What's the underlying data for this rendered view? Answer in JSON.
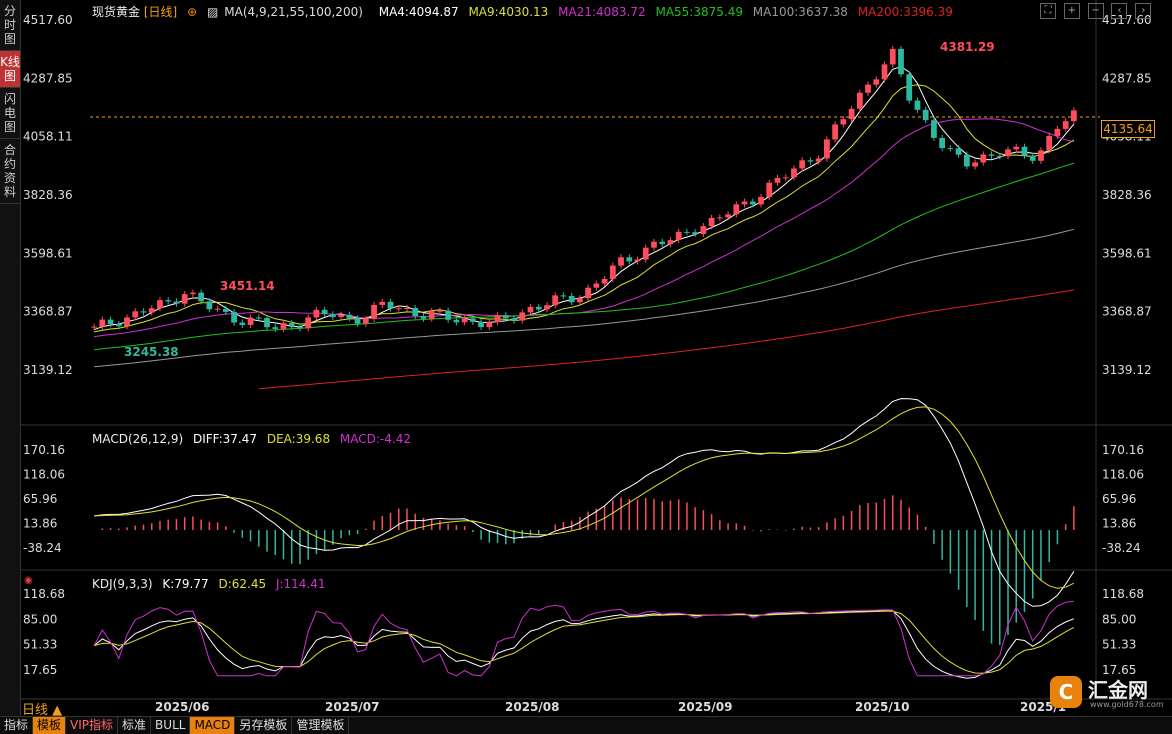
{
  "left_tabs": [
    "分时图",
    "K线图",
    "闪电图",
    "合约资料"
  ],
  "legend_main": {
    "symbol": "现货黄金",
    "period": "[日线]",
    "ma_def": "MA(4,9,21,55,100,200)",
    "ma4": "MA4:4094.87",
    "ma9": "MA9:4030.13",
    "ma21": "MA21:4083.72",
    "ma55": "MA55:3875.49",
    "ma100": "MA100:3637.38",
    "ma200": "MA200:3396.39"
  },
  "legend_macd": {
    "def": "MACD(26,12,9)",
    "diff": "DIFF:37.47",
    "dea": "DEA:39.68",
    "macd": "MACD:-4.42"
  },
  "legend_kdj": {
    "def": "KDJ(9,3,3)",
    "k": "K:79.77",
    "d": "D:62.45",
    "j": "J:114.41"
  },
  "price_axis": [
    "4517.60",
    "4287.85",
    "4058.11",
    "3828.36",
    "3598.61",
    "3368.87",
    "3139.12"
  ],
  "macd_axis": [
    "170.16",
    "118.06",
    "65.96",
    "13.86",
    "-38.24"
  ],
  "kdj_axis": [
    "118.68",
    "85.00",
    "51.33",
    "17.65"
  ],
  "x_axis": [
    "2025/06",
    "2025/07",
    "2025/08",
    "2025/09",
    "2025/10",
    "2025/1"
  ],
  "annotations": {
    "high": "4381.29",
    "mid": "3451.14",
    "low": "3245.38"
  },
  "current_price": "4135.64",
  "period_label": "日线 ▲",
  "bottom_buttons": [
    "指标",
    "模板",
    "VIP指标",
    "标准",
    "BULL",
    "MACD",
    "另存模板",
    "管理模板"
  ],
  "brand": {
    "logo": "C",
    "name": "汇金网",
    "url": "www.gold678.com"
  },
  "colors": {
    "up": "#ff4d5b",
    "down": "#2fb8a0",
    "ma4": "#ffffff",
    "ma9": "#e0e030",
    "ma21": "#d030d0",
    "ma55": "#20c020",
    "ma100": "#999999",
    "ma200": "#e02020",
    "accent": "#e8820c"
  },
  "chart_data": {
    "type": "candlestick",
    "title": "现货黄金 [日线]",
    "ylim": [
      3139.12,
      4517.6
    ],
    "x_ticks": [
      "2025/06",
      "2025/07",
      "2025/08",
      "2025/09",
      "2025/10",
      "2025/1"
    ],
    "close_path": [
      3300,
      3330,
      3350,
      3380,
      3400,
      3450,
      3400,
      3360,
      3340,
      3330,
      3300,
      3320,
      3350,
      3360,
      3340,
      3350,
      3400,
      3380,
      3360,
      3350,
      3340,
      3330,
      3320,
      3350,
      3380,
      3400,
      3420,
      3440,
      3500,
      3560,
      3600,
      3640,
      3650,
      3700,
      3720,
      3760,
      3800,
      3850,
      3900,
      3950,
      4000,
      4100,
      4200,
      4300,
      4381,
      4200,
      4100,
      4000,
      3950,
      3980,
      4000,
      3990,
      3980,
      4100,
      4135
    ],
    "ma_end_values": {
      "MA4": 4094.87,
      "MA9": 4030.13,
      "MA21": 4083.72,
      "MA55": 3875.49,
      "MA100": 3637.38,
      "MA200": 3396.39
    },
    "high": 4381.29,
    "low": 3245.38,
    "current": 4135.64
  }
}
